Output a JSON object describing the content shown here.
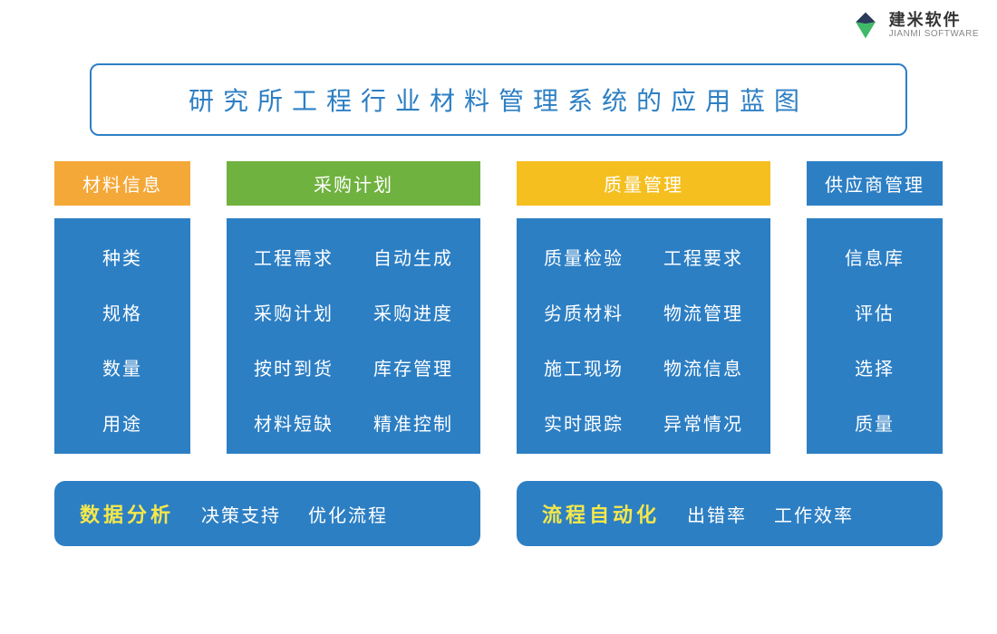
{
  "logo": {
    "cn": "建米软件",
    "en": "JIANMI SOFTWARE",
    "icon_colors": {
      "top": "#2a3a5a",
      "right": "#2a3a5a",
      "bottom": "#3fb968"
    }
  },
  "title": {
    "text": "研究所工程行业材料管理系统的应用蓝图",
    "border_color": "#2d7fc4",
    "text_color": "#2d7fc4",
    "fontsize": 28,
    "letter_spacing": 10
  },
  "colors": {
    "body_bg": "#2d7fc4",
    "body_text": "#ffffff",
    "page_bg": "#ffffff"
  },
  "columns": [
    {
      "width": "narrow",
      "header": {
        "label": "材料信息",
        "bg": "#f4a838"
      },
      "layout": "single",
      "items": [
        "种类",
        "规格",
        "数量",
        "用途"
      ]
    },
    {
      "width": "wide",
      "header": {
        "label": "采购计划",
        "bg": "#6fb23f"
      },
      "layout": "double",
      "items": [
        "工程需求",
        "自动生成",
        "采购计划",
        "采购进度",
        "按时到货",
        "库存管理",
        "材料短缺",
        "精准控制"
      ]
    },
    {
      "width": "wide",
      "header": {
        "label": "质量管理",
        "bg": "#f5bf1f"
      },
      "layout": "double",
      "items": [
        "质量检验",
        "工程要求",
        "劣质材料",
        "物流管理",
        "施工现场",
        "物流信息",
        "实时跟踪",
        "异常情况"
      ]
    },
    {
      "width": "narrow",
      "header": {
        "label": "供应商管理",
        "bg": "#2d7fc4"
      },
      "layout": "single",
      "items": [
        "信息库",
        "评估",
        "选择",
        "质量"
      ]
    }
  ],
  "bottom": [
    {
      "title": "数据分析",
      "title_color": "#f5e84a",
      "items": [
        "决策支持",
        "优化流程"
      ]
    },
    {
      "title": "流程自动化",
      "title_color": "#f5e84a",
      "items": [
        "出错率",
        "工作效率"
      ]
    }
  ],
  "item_fontsize": 20,
  "header_fontsize": 20,
  "bottom_title_fontsize": 22,
  "bottom_radius": 12
}
